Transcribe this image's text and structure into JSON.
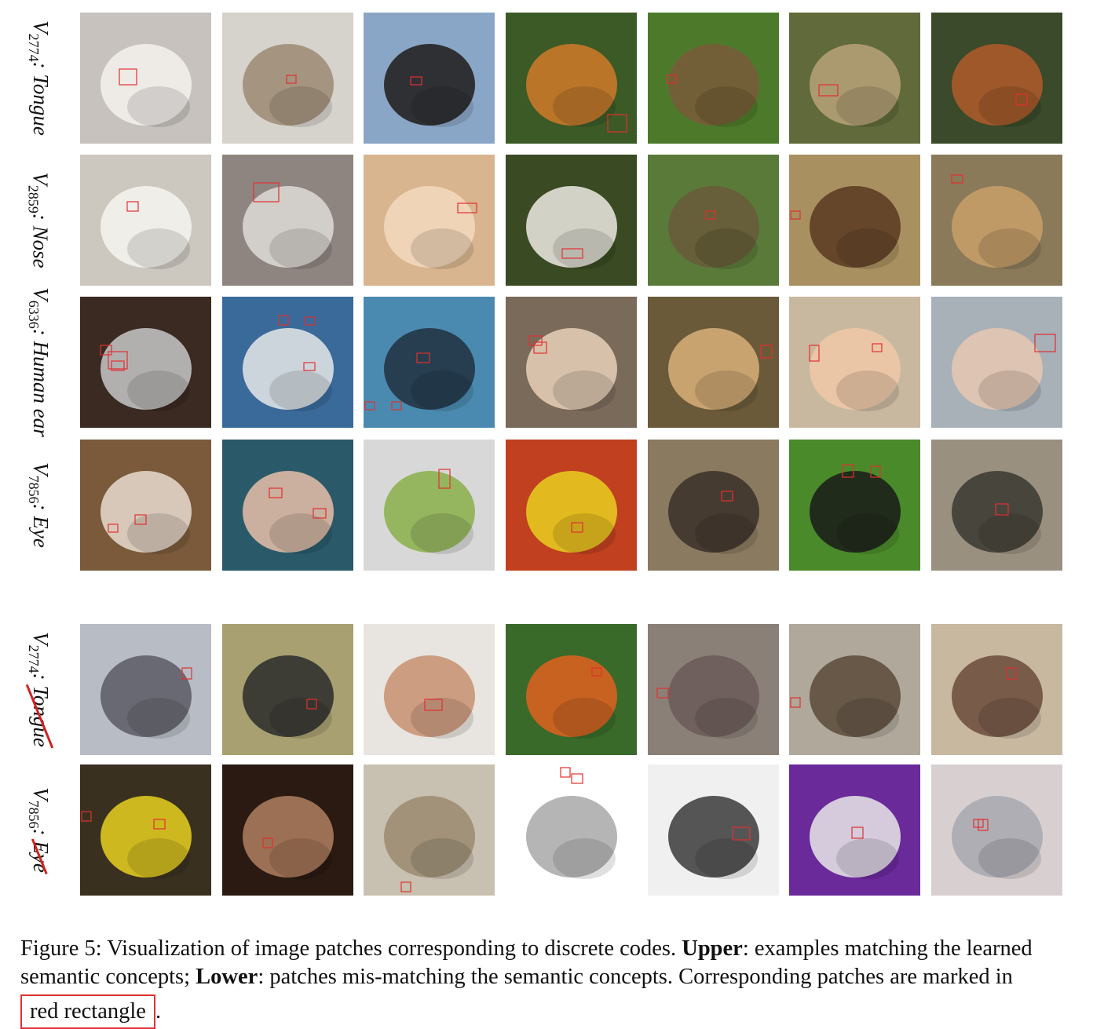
{
  "rows": [
    {
      "code_symbol": "V",
      "code_index": "2774",
      "concept": "Tongue",
      "struck": false,
      "tiles": [
        {
          "name": "samoyed-puppy",
          "bg": "#c7c2be",
          "fg": "#f4f2ef",
          "boxes": [
            [
              50,
              72,
              22,
              20
            ]
          ]
        },
        {
          "name": "shaggy-dog-running",
          "bg": "#d6d2cc",
          "fg": "#9c8a72",
          "boxes": [
            [
              82,
              80,
              12,
              10
            ]
          ]
        },
        {
          "name": "black-dog-sky",
          "bg": "#8aa6c7",
          "fg": "#1e1b1a",
          "boxes": [
            [
              60,
              82,
              14,
              10
            ]
          ]
        },
        {
          "name": "tiger-face",
          "bg": "#3c5a26",
          "fg": "#d07a2a",
          "boxes": [
            [
              130,
              130,
              24,
              22
            ]
          ]
        },
        {
          "name": "monkey-fruit",
          "bg": "#4d7a2a",
          "fg": "#7a5a3a",
          "boxes": [
            [
              24,
              80,
              12,
              10
            ]
          ]
        },
        {
          "name": "jaguar-face",
          "bg": "#606a3a",
          "fg": "#b8a27a",
          "boxes": [
            [
              38,
              92,
              24,
              14
            ]
          ]
        },
        {
          "name": "red-panda",
          "bg": "#3a4a2a",
          "fg": "#b25a2a",
          "boxes": [
            [
              108,
              104,
              14,
              14
            ]
          ]
        }
      ]
    },
    {
      "code_symbol": "V",
      "code_index": "2859",
      "concept": "Nose",
      "struck": false,
      "tiles": [
        {
          "name": "white-fluffy-dog",
          "bg": "#ccc7bf",
          "fg": "#f6f4f0",
          "boxes": [
            [
              60,
              60,
              14,
              12
            ]
          ]
        },
        {
          "name": "arctic-fox-yawn",
          "bg": "#8e8580",
          "fg": "#dedad6",
          "boxes": [
            [
              40,
              36,
              32,
              24
            ]
          ]
        },
        {
          "name": "baby-screwdriver",
          "bg": "#d8b58e",
          "fg": "#f5d9c0",
          "boxes": [
            [
              120,
              62,
              24,
              12
            ]
          ]
        },
        {
          "name": "panda-bamboo",
          "bg": "#3a4a22",
          "fg": "#eeeae4",
          "boxes": [
            [
              72,
              120,
              26,
              12
            ]
          ]
        },
        {
          "name": "capuchin-branch",
          "bg": "#5a7a3a",
          "fg": "#6a5a3a",
          "boxes": [
            [
              74,
              72,
              12,
              10
            ]
          ]
        },
        {
          "name": "brown-bear",
          "bg": "#a89060",
          "fg": "#5a3a22",
          "boxes": [
            [
              2,
              72,
              12,
              10
            ]
          ]
        },
        {
          "name": "cheetah-face",
          "bg": "#8a7a5a",
          "fg": "#c8a06a",
          "boxes": [
            [
              26,
              26,
              14,
              10
            ]
          ]
        }
      ]
    },
    {
      "code_symbol": "V",
      "code_index": "6336",
      "concept": "Human ear",
      "struck": false,
      "tiles": [
        {
          "name": "man-respirator-mask",
          "bg": "#3a2a22",
          "fg": "#c8c8c8",
          "boxes": [
            [
              26,
              62,
              14,
              12
            ],
            [
              36,
              70,
              24,
              22
            ],
            [
              40,
              82,
              16,
              12
            ]
          ]
        },
        {
          "name": "man-holding-fish",
          "bg": "#3a6a9a",
          "fg": "#e8e8e8",
          "boxes": [
            [
              72,
              24,
              12,
              12
            ],
            [
              106,
              26,
              12,
              10
            ],
            [
              104,
              84,
              14,
              10
            ]
          ]
        },
        {
          "name": "swimmer-goggles",
          "bg": "#4a8ab0",
          "fg": "#203040",
          "boxes": [
            [
              68,
              72,
              16,
              12
            ],
            [
              2,
              134,
              12,
              10
            ],
            [
              36,
              134,
              12,
              10
            ]
          ]
        },
        {
          "name": "man-eating-chopsticks",
          "bg": "#7a6a5a",
          "fg": "#e8d0b8",
          "boxes": [
            [
              30,
              50,
              16,
              12
            ],
            [
              36,
              58,
              16,
              14
            ]
          ]
        },
        {
          "name": "child-bubbles",
          "bg": "#6a5a3a",
          "fg": "#d8b07a",
          "boxes": [
            [
              144,
              62,
              14,
              16
            ]
          ]
        },
        {
          "name": "girl-eating-corn",
          "bg": "#c8b8a0",
          "fg": "#f0c8a8",
          "boxes": [
            [
              26,
              62,
              12,
              20
            ],
            [
              106,
              60,
              12,
              10
            ]
          ]
        },
        {
          "name": "baby-with-ferret",
          "bg": "#a8b0b8",
          "fg": "#e8c8b0",
          "boxes": [
            [
              132,
              48,
              26,
              22
            ]
          ]
        }
      ]
    },
    {
      "code_symbol": "V",
      "code_index": "7856",
      "concept": "Eye",
      "struck": false,
      "tiles": [
        {
          "name": "siamese-kitten",
          "bg": "#7a5a3a",
          "fg": "#e8dcd0",
          "boxes": [
            [
              36,
              108,
              12,
              10
            ],
            [
              70,
              96,
              14,
              12
            ]
          ]
        },
        {
          "name": "woman-knit-hat",
          "bg": "#2a5a6a",
          "fg": "#e8c0a8",
          "boxes": [
            [
              60,
              62,
              16,
              12
            ],
            [
              116,
              88,
              16,
              12
            ]
          ]
        },
        {
          "name": "green-apple",
          "bg": "#d8d8d8",
          "fg": "#8ab04a",
          "boxes": [
            [
              96,
              38,
              14,
              24
            ]
          ]
        },
        {
          "name": "yellow-fish-coral",
          "bg": "#c04020",
          "fg": "#e8d020",
          "boxes": [
            [
              84,
              106,
              14,
              12
            ]
          ]
        },
        {
          "name": "ferret-ground",
          "bg": "#8a7a60",
          "fg": "#3a3028",
          "boxes": [
            [
              94,
              66,
              14,
              12
            ]
          ]
        },
        {
          "name": "pomeranian-grass",
          "bg": "#4a8a2a",
          "fg": "#1a1a1a",
          "boxes": [
            [
              68,
              32,
              14,
              16
            ],
            [
              104,
              34,
              12,
              14
            ]
          ]
        },
        {
          "name": "snake-coiled",
          "bg": "#9a9080",
          "fg": "#3a3a30",
          "boxes": [
            [
              82,
              82,
              16,
              14
            ]
          ]
        }
      ]
    },
    {
      "code_symbol": "V",
      "code_index": "2774",
      "concept": "Tongue",
      "struck": true,
      "tiles": [
        {
          "name": "junco-bird-branch",
          "bg": "#b8bcc4",
          "fg": "#5a5a66",
          "boxes": [
            [
              130,
              56,
              12,
              14
            ]
          ]
        },
        {
          "name": "ostrich-field",
          "bg": "#a8a070",
          "fg": "#2a2a2a",
          "boxes": [
            [
              108,
              96,
              12,
              12
            ]
          ]
        },
        {
          "name": "hand-lizard",
          "bg": "#e8e4e0",
          "fg": "#c89070",
          "boxes": [
            [
              78,
              96,
              22,
              14
            ]
          ]
        },
        {
          "name": "lorikeet-leaves",
          "bg": "#3a6a2a",
          "fg": "#e06020",
          "boxes": [
            [
              110,
              56,
              12,
              10
            ]
          ]
        },
        {
          "name": "koala-closeup",
          "bg": "#8a8078",
          "fg": "#6a5a58",
          "boxes": [
            [
              12,
              82,
              14,
              12
            ]
          ]
        },
        {
          "name": "shell-in-hand",
          "bg": "#b0a89a",
          "fg": "#5a4a3a",
          "boxes": [
            [
              2,
              94,
              12,
              12
            ]
          ]
        },
        {
          "name": "crab-sand",
          "bg": "#c8b8a0",
          "fg": "#6a4a3a",
          "boxes": [
            [
              96,
              56,
              12,
              14
            ]
          ]
        }
      ]
    },
    {
      "code_symbol": "V",
      "code_index": "7856",
      "concept": "Eye",
      "struck": true,
      "tiles": [
        {
          "name": "yellow-black-fish",
          "bg": "#3a3020",
          "fg": "#e8d020",
          "boxes": [
            [
              2,
              60,
              12,
              12
            ],
            [
              94,
              70,
              14,
              12
            ]
          ]
        },
        {
          "name": "basset-hound",
          "bg": "#2a1a12",
          "fg": "#b08060",
          "boxes": [
            [
              52,
              94,
              12,
              12
            ]
          ]
        },
        {
          "name": "dog-rug",
          "bg": "#c8c0b0",
          "fg": "#9a8a70",
          "boxes": [
            [
              48,
              150,
              12,
              12
            ]
          ]
        },
        {
          "name": "bolo-tie-display",
          "bg": "#ffffff",
          "fg": "#a8a8a8",
          "boxes": [
            [
              70,
              4,
              12,
              12
            ],
            [
              84,
              12,
              14,
              12
            ]
          ]
        },
        {
          "name": "bolo-tie-flat",
          "bg": "#f0f0f0",
          "fg": "#3a3a3a",
          "boxes": [
            [
              108,
              80,
              22,
              16
            ]
          ]
        },
        {
          "name": "purple-wheel",
          "bg": "#6a2a9a",
          "fg": "#e8e8e8",
          "boxes": [
            [
              80,
              80,
              14,
              14
            ]
          ]
        },
        {
          "name": "silver-bottles",
          "bg": "#d8d0d0",
          "fg": "#a8a8b0",
          "boxes": [
            [
              54,
              70,
              12,
              10
            ],
            [
              60,
              70,
              12,
              14
            ]
          ]
        }
      ]
    }
  ],
  "caption": {
    "prefix": "Figure 5: Visualization of image patches corresponding to discrete codes. ",
    "upper_label": "Upper",
    "upper_text": ": examples matching the learned semantic concepts; ",
    "lower_label": "Lower",
    "lower_text": ": patches mis-matching the semantic concepts. Corresponding patches are marked in ",
    "boxed_text": "red rectangle",
    "suffix": "."
  },
  "colors": {
    "box_stroke": "#e23030",
    "strike": "#d22222"
  }
}
